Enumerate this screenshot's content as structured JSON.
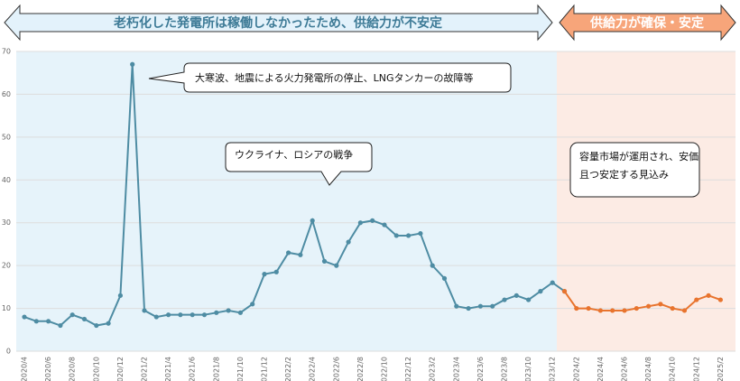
{
  "chart_data": {
    "type": "line",
    "banners": [
      "老朽化した発電所は稼働しなかったため、供給力が不安定",
      "供給力が確保・安定"
    ],
    "annotations": [
      {
        "lines": [
          "大寒波、地震による火力発電所の停止、LNGタンカーの故障等"
        ]
      },
      {
        "lines": [
          "ウクライナ、ロシアの戦争"
        ]
      },
      {
        "lines": [
          "容量市場が運用され、安価",
          "且つ安定する見込み"
        ]
      }
    ],
    "categories": [
      "2020/4",
      null,
      "2020/6",
      null,
      "2020/8",
      null,
      "2020/10",
      null,
      "2020/12",
      null,
      "2021/2",
      null,
      "2021/4",
      null,
      "2021/6",
      null,
      "2021/8",
      null,
      "2021/10",
      null,
      "2021/12",
      null,
      "2022/2",
      null,
      "2022/4",
      null,
      "2022/6",
      null,
      "2022/8",
      null,
      "2022/10",
      null,
      "2022/12",
      null,
      "2023/2",
      null,
      "2023/4",
      null,
      "2023/6",
      null,
      "2023/8",
      null,
      "2023/10",
      null,
      "2023/12",
      null,
      "2024/2",
      null,
      "2024/4",
      null,
      "2024/6",
      null,
      "2024/8",
      null,
      "2024/10",
      null,
      "2024/12",
      null,
      "2025/2"
    ],
    "series": [
      {
        "color": "#4e8ca3",
        "values": [
          8,
          7,
          7,
          6,
          8.5,
          7.5,
          6,
          6.5,
          13,
          67,
          9.5,
          8,
          8.5,
          8.5,
          8.5,
          8.5,
          9,
          9.5,
          9,
          11,
          18,
          18.5,
          23,
          22.5,
          30.5,
          21,
          20,
          25.5,
          30,
          30.5,
          29.5,
          27,
          27,
          27.5,
          20,
          17,
          10.5,
          10,
          10.5,
          10.5,
          12,
          13,
          12,
          14,
          16,
          14,
          null,
          null,
          null,
          null,
          null,
          null,
          null,
          null,
          null,
          null,
          null,
          null,
          null
        ]
      },
      {
        "color": "#e8742e",
        "values": [
          null,
          null,
          null,
          null,
          null,
          null,
          null,
          null,
          null,
          null,
          null,
          null,
          null,
          null,
          null,
          null,
          null,
          null,
          null,
          null,
          null,
          null,
          null,
          null,
          null,
          null,
          null,
          null,
          null,
          null,
          null,
          null,
          null,
          null,
          null,
          null,
          null,
          null,
          null,
          null,
          null,
          null,
          null,
          null,
          null,
          14,
          10,
          10,
          9.5,
          9.5,
          9.5,
          10,
          10.5,
          11,
          10,
          9.5,
          12,
          13,
          12
        ]
      }
    ],
    "ylim": [
      0,
      70
    ],
    "yticks": [
      0,
      10,
      20,
      30,
      40,
      50,
      60,
      70
    ],
    "grid": true
  }
}
